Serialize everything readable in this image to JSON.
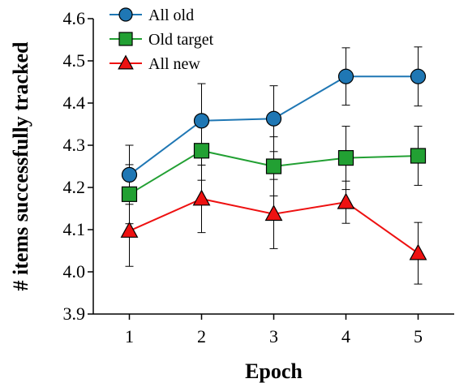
{
  "chart_data": {
    "type": "line",
    "title": "",
    "xlabel": "Epoch",
    "ylabel": "# items successfully tracked",
    "x": [
      1,
      2,
      3,
      4,
      5
    ],
    "xlim": [
      0.5,
      5.5
    ],
    "ylim": [
      3.9,
      4.6
    ],
    "yticks": [
      "3.9",
      "4.0",
      "4.1",
      "4.2",
      "4.3",
      "4.4",
      "4.5",
      "4.6"
    ],
    "xticks": [
      "1",
      "2",
      "3",
      "4",
      "5"
    ],
    "grid": false,
    "legend_position": "top-left",
    "series": [
      {
        "name": "All old",
        "color": "#1f77b4",
        "marker": "circle",
        "values": [
          4.23,
          4.358,
          4.363,
          4.463,
          4.463
        ],
        "error": [
          0.07,
          0.088,
          0.078,
          0.068,
          0.07
        ]
      },
      {
        "name": "Old target",
        "color": "#22a033",
        "marker": "square",
        "values": [
          4.184,
          4.287,
          4.25,
          4.27,
          4.275
        ],
        "error": [
          0.07,
          0.07,
          0.07,
          0.075,
          0.07
        ]
      },
      {
        "name": "All new",
        "color": "#ee1111",
        "marker": "triangle",
        "values": [
          4.097,
          4.173,
          4.137,
          4.165,
          4.044
        ],
        "error": [
          0.084,
          0.08,
          0.082,
          0.05,
          0.073
        ]
      }
    ]
  }
}
